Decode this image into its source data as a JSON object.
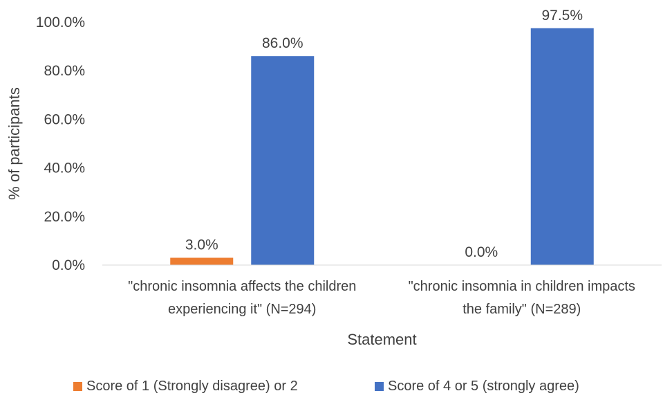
{
  "chart_data": {
    "type": "bar",
    "title": "",
    "xlabel": "Statement",
    "ylabel": "% of participants",
    "ylim": [
      0,
      100
    ],
    "yticks": [
      "0.0%",
      "20.0%",
      "40.0%",
      "60.0%",
      "80.0%",
      "100.0%"
    ],
    "grid": false,
    "legend_position": "bottom",
    "categories": [
      [
        "\"chronic insomnia affects the children",
        "experiencing it\" (N=294)"
      ],
      [
        "\"chronic insomnia in children impacts",
        "the family\" (N=289)"
      ]
    ],
    "series": [
      {
        "name": "Score of 1 (Strongly disagree) or 2",
        "color": "#ED7D31",
        "values": [
          3.0,
          0.0
        ],
        "labels": [
          "3.0%",
          "0.0%"
        ]
      },
      {
        "name": "Score of 4 or 5 (strongly agree)",
        "color": "#4472C4",
        "values": [
          86.0,
          97.5
        ],
        "labels": [
          "86.0%",
          "97.5%"
        ]
      }
    ]
  }
}
